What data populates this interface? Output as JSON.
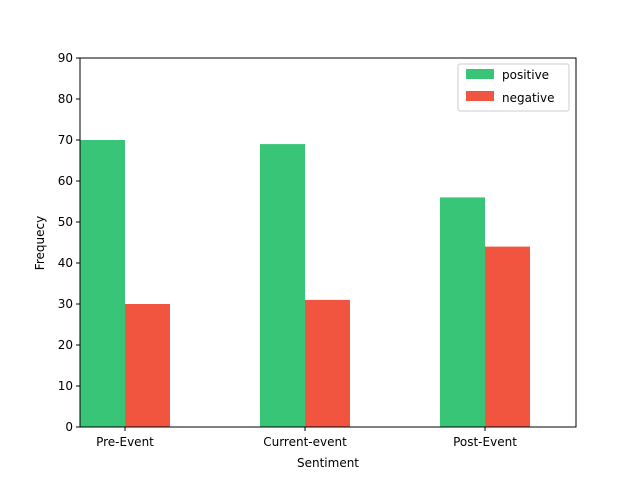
{
  "chart_data": {
    "type": "bar",
    "categories": [
      "Pre-Event",
      "Current-event",
      "Post-Event"
    ],
    "series": [
      {
        "name": "positive",
        "values": [
          70,
          69,
          56
        ],
        "color": "#38c577"
      },
      {
        "name": "negative",
        "values": [
          30,
          31,
          44
        ],
        "color": "#f2553f"
      }
    ],
    "xlabel": "Sentiment",
    "ylabel": "Frequecy",
    "ylim": [
      0,
      90
    ],
    "yticks": [
      0,
      10,
      20,
      30,
      40,
      50,
      60,
      70,
      80,
      90
    ],
    "grid": false,
    "legend_position": "top-right"
  }
}
